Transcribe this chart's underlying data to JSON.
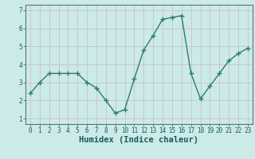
{
  "x": [
    0,
    1,
    2,
    3,
    4,
    5,
    6,
    7,
    8,
    9,
    10,
    11,
    12,
    13,
    14,
    15,
    16,
    17,
    18,
    19,
    20,
    21,
    22,
    23
  ],
  "y": [
    2.4,
    3.0,
    3.5,
    3.5,
    3.5,
    3.5,
    3.0,
    2.7,
    2.0,
    1.3,
    1.5,
    3.2,
    4.8,
    5.6,
    6.5,
    6.6,
    6.7,
    3.5,
    2.1,
    2.8,
    3.5,
    4.2,
    4.6,
    4.9
  ],
  "line_color": "#2e7d6e",
  "marker": "+",
  "marker_size": 4,
  "bg_color": "#cceae8",
  "grid_major_color": "#c8b8c8",
  "grid_minor_color": "#ddd4dd",
  "xlabel": "Humidex (Indice chaleur)",
  "ylim": [
    0.7,
    7.3
  ],
  "xlim": [
    -0.5,
    23.5
  ],
  "yticks": [
    1,
    2,
    3,
    4,
    5,
    6,
    7
  ],
  "xticks": [
    0,
    1,
    2,
    3,
    4,
    5,
    6,
    7,
    8,
    9,
    10,
    11,
    12,
    13,
    14,
    15,
    16,
    17,
    18,
    19,
    20,
    21,
    22,
    23
  ],
  "tick_fontsize": 5.5,
  "xlabel_fontsize": 7.5,
  "linewidth": 1.0,
  "marker_linewidth": 1.0
}
